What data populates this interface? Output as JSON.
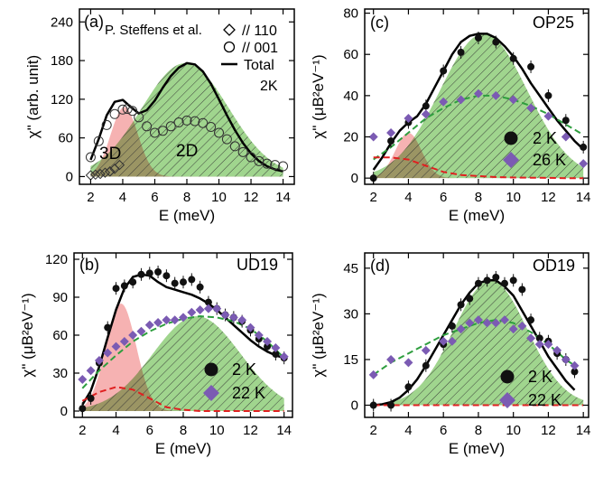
{
  "chart_data": [
    {
      "type": "line",
      "panel_label": "(a)",
      "annotations": {
        "source": "P. Steffens et al.",
        "region_3d": "3D",
        "region_2d": "2D"
      },
      "legend": [
        {
          "marker": "diamond-open",
          "label": "// 110"
        },
        {
          "marker": "circle-open",
          "label": "// 001"
        },
        {
          "marker": "line",
          "label": "Total"
        },
        {
          "marker": "none",
          "label": "2K"
        }
      ],
      "xlabel": "E (meV)",
      "ylabel": "χ\" (arb. unit)",
      "xlim": [
        1.3,
        14.7
      ],
      "ylim": [
        -12,
        260
      ],
      "xticks": [
        2,
        4,
        6,
        8,
        10,
        12,
        14
      ],
      "yticks": [
        0,
        60,
        120,
        180,
        240
      ],
      "grid": false,
      "fills": [
        {
          "name": "3D",
          "color": "#f5a4a4",
          "amplitude": 108,
          "center": 4.1,
          "width": 0.85
        },
        {
          "name": "2D",
          "color": "#8fce7a",
          "amplitude": 176,
          "center": 7.9,
          "width": 2.7
        }
      ],
      "lines": [
        {
          "name": "Total",
          "color": "#000000",
          "style": "solid",
          "x": [
            2,
            2.5,
            3,
            3.5,
            4,
            4.5,
            5,
            5.5,
            6,
            6.5,
            7,
            7.5,
            8,
            8.5,
            9,
            9.5,
            10,
            10.5,
            11,
            11.5,
            12,
            12.5,
            13,
            13.5,
            14
          ],
          "y": [
            26,
            58,
            95,
            116,
            119,
            108,
            98,
            103,
            118,
            138,
            156,
            169,
            176,
            174,
            163,
            144,
            120,
            95,
            72,
            52,
            36,
            24,
            16,
            11,
            8
          ]
        }
      ],
      "series": [
        {
          "name": "// 001",
          "marker": "circle-open",
          "x": [
            2,
            2.5,
            3,
            3.5,
            4,
            4.3,
            4.6,
            5,
            5.5,
            6,
            6.5,
            7,
            7.5,
            8,
            8.5,
            9,
            9.5,
            10,
            10.5,
            11,
            11.5,
            12,
            12.5,
            13,
            13.5,
            14
          ],
          "y": [
            30,
            55,
            80,
            97,
            104,
            105,
            102,
            92,
            78,
            68,
            71,
            78,
            84,
            87,
            86,
            83,
            77,
            68,
            58,
            47,
            38,
            30,
            24,
            20,
            18,
            16
          ]
        },
        {
          "name": "// 110",
          "marker": "diamond-open",
          "x": [
            2,
            2.3,
            2.6,
            2.9,
            3.2,
            3.5,
            3.8
          ],
          "y": [
            2,
            3,
            4,
            6,
            8,
            12,
            18
          ]
        }
      ]
    },
    {
      "type": "line",
      "panel_label": "(c)",
      "title": "OP25",
      "xlabel": "E (meV)",
      "ylabel": "χ\" (μB²eV⁻¹)",
      "xlim": [
        1.5,
        14.3
      ],
      "ylim": [
        -3,
        82
      ],
      "xticks": [
        2,
        4,
        6,
        8,
        10,
        12,
        14
      ],
      "yticks": [
        0,
        20,
        40,
        60,
        80
      ],
      "grid": false,
      "legend": [
        {
          "marker": "circle-filled",
          "color": "#1a1a1a",
          "label": "2 K"
        },
        {
          "marker": "diamond-filled",
          "color": "#7b5bb3",
          "label": "26 K"
        }
      ],
      "fills": [
        {
          "name": "3D",
          "color": "#f5a4a4",
          "amplitude": 22,
          "center": 4.0,
          "width": 0.75
        },
        {
          "name": "2D",
          "color": "#8fce7a",
          "amplitude": 70,
          "center": 8.3,
          "width": 2.5
        }
      ],
      "lines": [
        {
          "name": "2 K fit",
          "color": "#000000",
          "style": "solid",
          "x": [
            2,
            2.5,
            3,
            3.5,
            4,
            4.5,
            5,
            5.5,
            6,
            6.5,
            7,
            7.5,
            8,
            8.5,
            9,
            9.5,
            10,
            10.5,
            11,
            11.5,
            12,
            12.5,
            13,
            13.5,
            14
          ],
          "y": [
            4,
            10,
            17,
            23,
            27,
            30,
            36,
            44,
            52,
            60,
            66,
            69,
            70,
            70,
            68,
            64,
            59,
            53,
            46,
            40,
            34,
            28,
            23,
            18,
            14
          ]
        },
        {
          "name": "26 K fit",
          "color": "#2e9e3e",
          "style": "dashed",
          "x": [
            2,
            3,
            4,
            5,
            6,
            7,
            8,
            9,
            10,
            11,
            12,
            13,
            14
          ],
          "y": [
            9,
            15,
            22,
            29,
            34,
            38,
            40,
            40,
            38,
            35,
            31,
            26,
            21
          ]
        },
        {
          "name": "3D component",
          "color": "#e02020",
          "style": "dashed",
          "x": [
            2,
            3,
            4,
            5,
            6,
            7,
            8,
            9,
            10,
            11,
            12,
            13,
            14
          ],
          "y": [
            10,
            10,
            9,
            6,
            3,
            1.5,
            1,
            0.5,
            0.3,
            0.2,
            0.1,
            0,
            0
          ]
        }
      ],
      "series": [
        {
          "name": "2 K",
          "marker": "circle-filled",
          "x": [
            2,
            3,
            4,
            5,
            6,
            7,
            8,
            9,
            10,
            11,
            12,
            13,
            14
          ],
          "y": [
            0,
            18,
            27,
            35,
            52,
            61,
            68,
            66,
            58,
            54,
            40,
            28,
            15
          ]
        },
        {
          "name": "26 K",
          "marker": "diamond-filled",
          "x": [
            2,
            3,
            4,
            5,
            6,
            7,
            8,
            9,
            10,
            11,
            12,
            13,
            14
          ],
          "y": [
            20,
            22,
            29,
            31,
            37,
            38,
            41,
            40,
            38,
            34,
            30,
            20,
            7
          ]
        }
      ]
    },
    {
      "type": "line",
      "panel_label": "(b)",
      "title": "UD19",
      "xlabel": "E (meV)",
      "ylabel": "χ\" (μB²eV⁻¹)",
      "xlim": [
        1.5,
        14.5
      ],
      "ylim": [
        -5,
        125
      ],
      "xticks": [
        2,
        4,
        6,
        8,
        10,
        12,
        14
      ],
      "yticks": [
        0,
        30,
        60,
        90,
        120
      ],
      "grid": false,
      "legend": [
        {
          "marker": "circle-filled",
          "color": "#1a1a1a",
          "label": "2 K"
        },
        {
          "marker": "diamond-filled",
          "color": "#7b5bb3",
          "label": "22 K"
        }
      ],
      "fills": [
        {
          "name": "3D",
          "color": "#f5a4a4",
          "amplitude": 85,
          "center": 4.3,
          "width": 0.9
        },
        {
          "name": "2D",
          "color": "#8fce7a",
          "amplitude": 75,
          "center": 8.8,
          "width": 2.6
        }
      ],
      "lines": [
        {
          "name": "2 K fit",
          "color": "#000000",
          "style": "solid",
          "x": [
            2,
            2.5,
            3,
            3.5,
            4,
            4.5,
            5,
            5.5,
            6,
            6.5,
            7,
            7.5,
            8,
            8.5,
            9,
            9.5,
            10,
            10.5,
            11,
            11.5,
            12,
            12.5,
            13,
            13.5,
            14
          ],
          "y": [
            5,
            16,
            35,
            58,
            80,
            97,
            106,
            108,
            107,
            102,
            98,
            96,
            94,
            92,
            89,
            85,
            80,
            74,
            68,
            62,
            56,
            51,
            47,
            44,
            42
          ]
        },
        {
          "name": "22 K fit",
          "color": "#2e9e3e",
          "style": "dashed",
          "x": [
            2,
            3,
            4,
            5,
            6,
            7,
            8,
            9,
            10,
            11,
            12,
            13,
            14
          ],
          "y": [
            18,
            32,
            44,
            55,
            63,
            69,
            73,
            75,
            74,
            71,
            65,
            55,
            42
          ]
        },
        {
          "name": "3D component",
          "color": "#e02020",
          "style": "dashed",
          "x": [
            2,
            3,
            4,
            5,
            6,
            7,
            8,
            9,
            10,
            11,
            12,
            13,
            14
          ],
          "y": [
            8,
            15,
            19,
            17,
            10,
            3,
            1,
            0,
            0,
            0,
            0,
            0,
            0
          ]
        }
      ],
      "series": [
        {
          "name": "2 K",
          "marker": "circle-filled",
          "x": [
            2,
            2.5,
            3,
            3.5,
            4,
            4.5,
            5,
            5.5,
            6,
            6.5,
            7,
            7.5,
            8,
            8.5,
            9,
            9.5,
            10,
            10.5,
            11,
            11.5,
            12,
            12.5,
            13,
            13.5,
            14
          ],
          "y": [
            2,
            10,
            38,
            66,
            97,
            99,
            102,
            108,
            109,
            110,
            107,
            101,
            102,
            104,
            98,
            86,
            81,
            76,
            74,
            71,
            64,
            57,
            51,
            45,
            42
          ]
        },
        {
          "name": "22 K",
          "marker": "diamond-filled",
          "x": [
            2,
            2.5,
            3,
            3.5,
            4,
            4.5,
            5,
            5.5,
            6,
            6.5,
            7,
            7.5,
            8,
            8.5,
            9,
            9.5,
            10,
            10.5,
            11,
            11.5,
            12,
            12.5,
            13,
            13.5,
            14
          ],
          "y": [
            25,
            32,
            40,
            46,
            51,
            55,
            60,
            63,
            68,
            70,
            72,
            72,
            74,
            78,
            80,
            81,
            81,
            76,
            74,
            72,
            66,
            60,
            55,
            50,
            43
          ]
        }
      ]
    },
    {
      "type": "line",
      "panel_label": "(d)",
      "title": "OD19",
      "xlabel": "E (meV)",
      "ylabel": "χ\" (μB²eV⁻¹)",
      "xlim": [
        1.5,
        14.3
      ],
      "ylim": [
        -4,
        50
      ],
      "xticks": [
        2,
        4,
        6,
        8,
        10,
        12,
        14
      ],
      "yticks": [
        0,
        15,
        30,
        45
      ],
      "grid": false,
      "legend": [
        {
          "marker": "circle-filled",
          "color": "#1a1a1a",
          "label": "2 K"
        },
        {
          "marker": "diamond-filled",
          "color": "#7b5bb3",
          "label": "22 K"
        }
      ],
      "fills": [
        {
          "name": "2D",
          "color": "#8fce7a",
          "amplitude": 41,
          "center": 8.7,
          "width": 2.1
        }
      ],
      "lines": [
        {
          "name": "2 K fit",
          "color": "#000000",
          "style": "solid",
          "x": [
            2,
            2.5,
            3,
            3.5,
            4,
            4.5,
            5,
            5.5,
            6,
            6.5,
            7,
            7.5,
            8,
            8.5,
            9,
            9.5,
            10,
            10.5,
            11,
            11.5,
            12,
            12.5,
            13,
            13.5
          ],
          "y": [
            0,
            0.3,
            1,
            2.5,
            5,
            8.5,
            13,
            18,
            23,
            28,
            33,
            37,
            40,
            41,
            41,
            39,
            36,
            31,
            26,
            21,
            16,
            12,
            8,
            5
          ]
        },
        {
          "name": "22 K fit",
          "color": "#2e9e3e",
          "style": "dashed",
          "x": [
            2,
            3,
            4,
            5,
            6,
            7,
            8,
            9,
            10,
            11,
            12,
            13,
            13.5
          ],
          "y": [
            10,
            14,
            17,
            20,
            23,
            25,
            27,
            28,
            27,
            24,
            20,
            15,
            13
          ]
        },
        {
          "name": "3D component",
          "color": "#e02020",
          "style": "dashed",
          "x": [
            2,
            14
          ],
          "y": [
            0,
            0
          ]
        }
      ],
      "series": [
        {
          "name": "2 K",
          "marker": "circle-filled",
          "x": [
            2,
            3,
            4,
            5,
            6,
            6.5,
            7,
            7.5,
            8,
            8.5,
            9,
            9.5,
            10,
            10.5,
            11,
            11.5,
            12,
            12.5,
            13,
            13.5
          ],
          "y": [
            0,
            0,
            6,
            13,
            20,
            26,
            33,
            35,
            40,
            41,
            42,
            40,
            41,
            38,
            28,
            22,
            21,
            17,
            15,
            11
          ]
        },
        {
          "name": "22 K",
          "marker": "diamond-filled",
          "x": [
            2,
            3,
            4,
            5,
            6,
            6.5,
            7,
            7.5,
            8,
            8.5,
            9,
            9.5,
            10,
            10.5,
            11,
            11.5,
            12,
            12.5,
            13,
            13.5
          ],
          "y": [
            10,
            15,
            14,
            18,
            21,
            21,
            25,
            27,
            28,
            27,
            27,
            28,
            25,
            26,
            22,
            20,
            20,
            18,
            15,
            13
          ]
        }
      ]
    }
  ]
}
